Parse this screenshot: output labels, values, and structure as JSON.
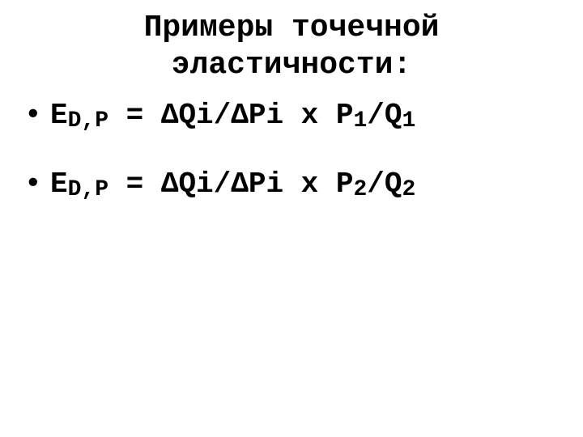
{
  "title": {
    "line1": "Примеры точечной",
    "line2": "эластичности:"
  },
  "formulas": [
    {
      "e": "Е",
      "sub1": "D,P",
      "eq": " = ΔQi/ΔPi x P",
      "subP": "1",
      "slashQ": "/Q",
      "subQ": "1"
    },
    {
      "e": "Е",
      "sub1": "D,P",
      "eq": " = ΔQi/ΔPi x P",
      "subP": "2",
      "slashQ": "/Q",
      "subQ": "2"
    }
  ],
  "colors": {
    "background": "#ffffff",
    "text": "#000000"
  },
  "typography": {
    "title_fontsize": 38,
    "body_fontsize": 36,
    "sub_fontsize": 28,
    "font_family": "Courier New",
    "weight": "bold"
  }
}
